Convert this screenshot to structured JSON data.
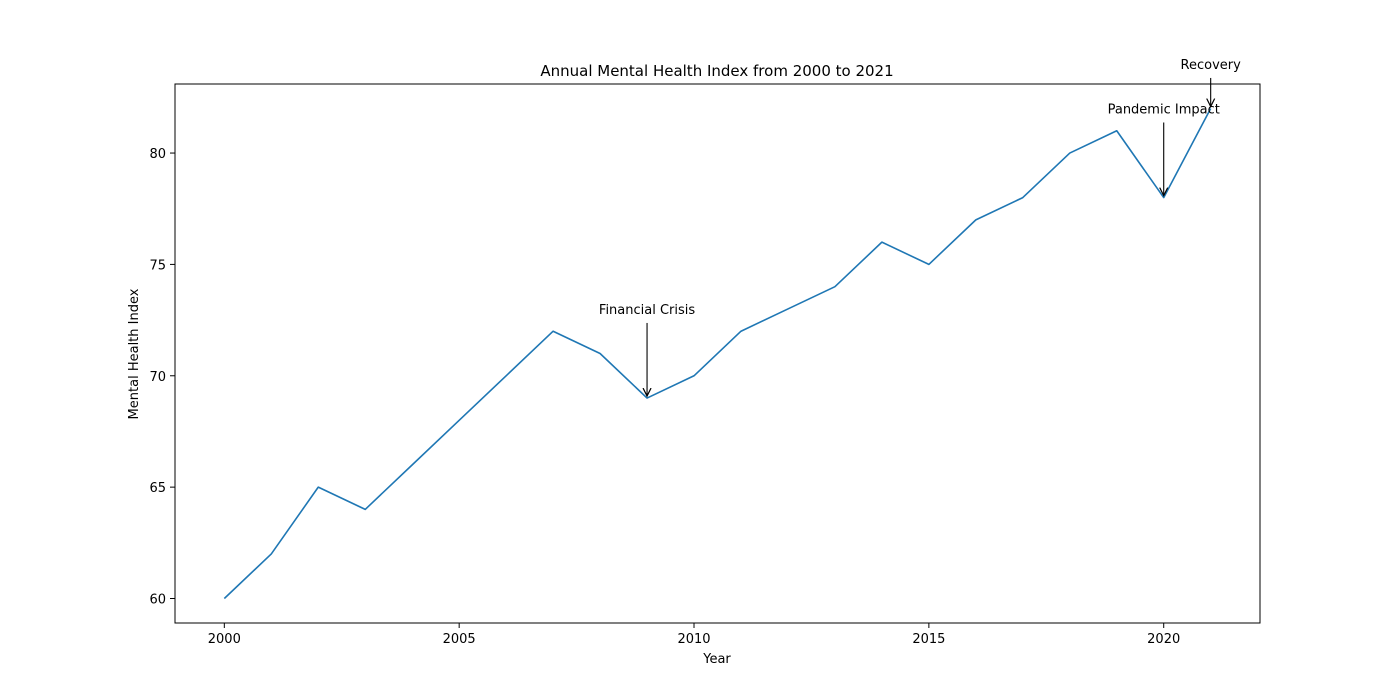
{
  "chart_data": {
    "type": "line",
    "title": "Annual Mental Health Index from 2000 to 2021",
    "xlabel": "Year",
    "ylabel": "Mental Health Index",
    "xlim": [
      1998.95,
      2022.05
    ],
    "ylim": [
      58.9,
      83.1
    ],
    "x_ticks": [
      2000,
      2005,
      2010,
      2015,
      2020
    ],
    "y_ticks": [
      60,
      65,
      70,
      75,
      80
    ],
    "grid": false,
    "series": [
      {
        "color": "#1f77b4",
        "x": [
          2000,
          2001,
          2002,
          2003,
          2004,
          2005,
          2006,
          2007,
          2008,
          2009,
          2010,
          2011,
          2012,
          2013,
          2014,
          2015,
          2016,
          2017,
          2018,
          2019,
          2020,
          2021
        ],
        "y": [
          60,
          62,
          65,
          64,
          66,
          68,
          70,
          72,
          71,
          69,
          70,
          72,
          73,
          74,
          76,
          75,
          77,
          78,
          80,
          81,
          78,
          82
        ]
      }
    ],
    "annotations": [
      {
        "text": "Financial Crisis",
        "x": 2009,
        "y": 69,
        "text_x": 2009,
        "text_y": 73
      },
      {
        "text": "Pandemic Impact",
        "x": 2020,
        "y": 78,
        "text_x": 2020,
        "text_y": 82
      },
      {
        "text": "Recovery",
        "x": 2021,
        "y": 82,
        "text_x": 2021,
        "text_y": 84
      }
    ]
  }
}
